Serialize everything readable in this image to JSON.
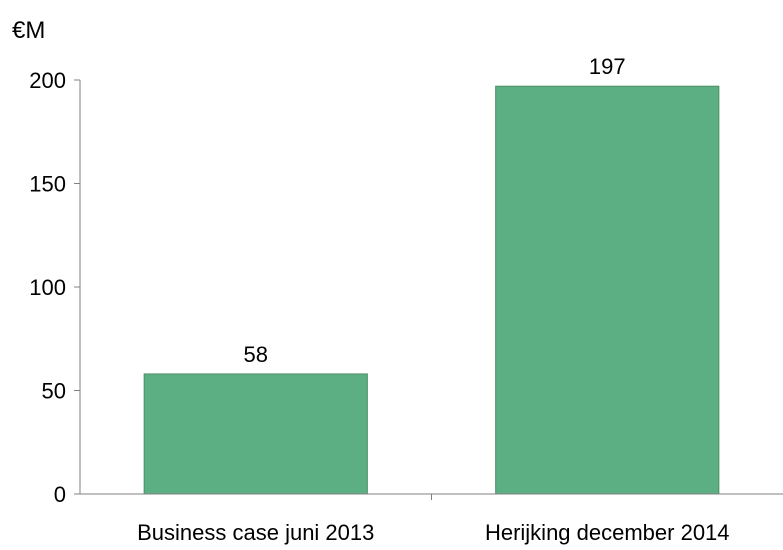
{
  "chart_data": {
    "type": "bar",
    "unit_label": "€M",
    "categories": [
      "Business case juni 2013",
      "Herijking december 2014"
    ],
    "values": [
      58,
      197
    ],
    "data_labels": [
      "58",
      "197"
    ],
    "ylim": [
      0,
      200
    ],
    "yticks": [
      0,
      50,
      100,
      150,
      200
    ],
    "grid": false,
    "legend": "none",
    "bar_color": "#5BAF83",
    "bar_edge_color": "#4F8F66",
    "axis_color": "#808080"
  }
}
